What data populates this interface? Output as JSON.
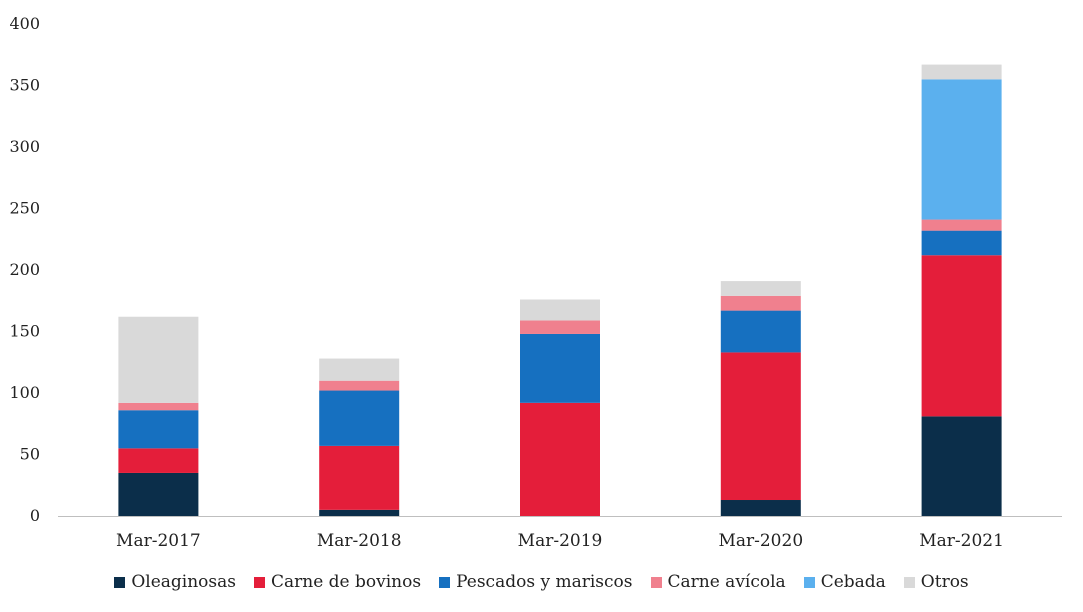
{
  "chart_data": {
    "type": "bar",
    "stacked": true,
    "title": "",
    "xlabel": "",
    "ylabel": "",
    "ylim": [
      0,
      400
    ],
    "yticks": [
      0,
      50,
      100,
      150,
      200,
      250,
      300,
      350,
      400
    ],
    "grid": false,
    "legend_position": "bottom",
    "categories": [
      "Mar-2017",
      "Mar-2018",
      "Mar-2019",
      "Mar-2020",
      "Mar-2021"
    ],
    "series": [
      {
        "name": "Oleaginosas",
        "color": "#0b2e4a",
        "values": [
          35,
          5,
          0,
          13,
          81
        ]
      },
      {
        "name": "Carne de bovinos",
        "color": "#e41e3a",
        "values": [
          20,
          52,
          92,
          120,
          131
        ]
      },
      {
        "name": "Pescados y mariscos",
        "color": "#1670c0",
        "values": [
          31,
          45,
          56,
          34,
          20
        ]
      },
      {
        "name": "Carne avícola",
        "color": "#f0808e",
        "values": [
          6,
          8,
          11,
          12,
          9
        ]
      },
      {
        "name": "Cebada",
        "color": "#5bb0ee",
        "values": [
          0,
          0,
          0,
          0,
          114
        ]
      },
      {
        "name": "Otros",
        "color": "#d9d9d9",
        "values": [
          70,
          18,
          17,
          12,
          12
        ]
      }
    ]
  }
}
